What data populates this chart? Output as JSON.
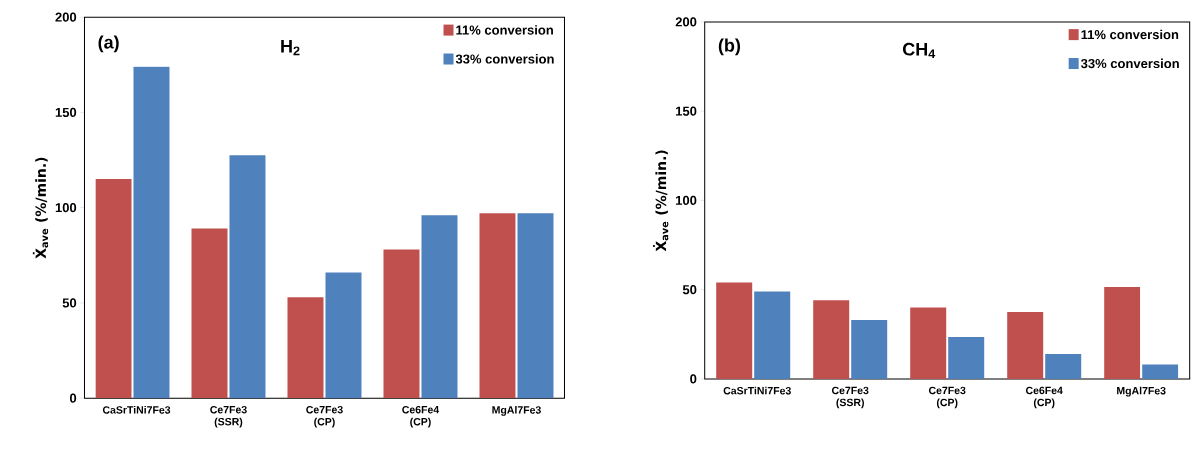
{
  "chart_data": [
    {
      "type": "bar",
      "annotations": [
        "(a)",
        "H$_{2}$"
      ],
      "ylabel": "Ẋ$_{ave}$ (%/min.)",
      "categories": [
        "CaSrTiNi7Fe3",
        "Ce7Fe3 (SSR)",
        "Ce7Fe3 (CP)",
        "Ce6Fe4 (CP)",
        "MgAl7Fe3"
      ],
      "series": [
        {
          "name": "11% conversion",
          "color": "#c0504d",
          "values": [
            115,
            89,
            53,
            78,
            97
          ]
        },
        {
          "name": "33% conversion",
          "color": "#4f81bd",
          "values": [
            174,
            127.5,
            66,
            96,
            97
          ]
        }
      ],
      "ylim": [
        0,
        200
      ],
      "yticks": [
        0,
        50,
        100,
        150,
        200
      ],
      "legend": "top right"
    },
    {
      "type": "bar",
      "annotations": [
        "(b)",
        "CH$_{4}$"
      ],
      "ylabel": "Ẋ$_{ave}$ (%/min.)",
      "categories": [
        "CaSrTiNi7Fe3",
        "Ce7Fe3 (SSR)",
        "Ce7Fe3 (CP)",
        "Ce6Fe4 (CP)",
        "MgAl7Fe3"
      ],
      "series": [
        {
          "name": "11% conversion",
          "color": "#c0504d",
          "values": [
            54,
            44,
            40,
            37.5,
            51.5
          ]
        },
        {
          "name": "33% conversion",
          "color": "#4f81bd",
          "values": [
            49,
            33,
            23.5,
            14,
            8
          ]
        }
      ],
      "ylim": [
        0,
        200
      ],
      "yticks": [
        0,
        50,
        100,
        150,
        200
      ],
      "legend": "top right"
    }
  ]
}
